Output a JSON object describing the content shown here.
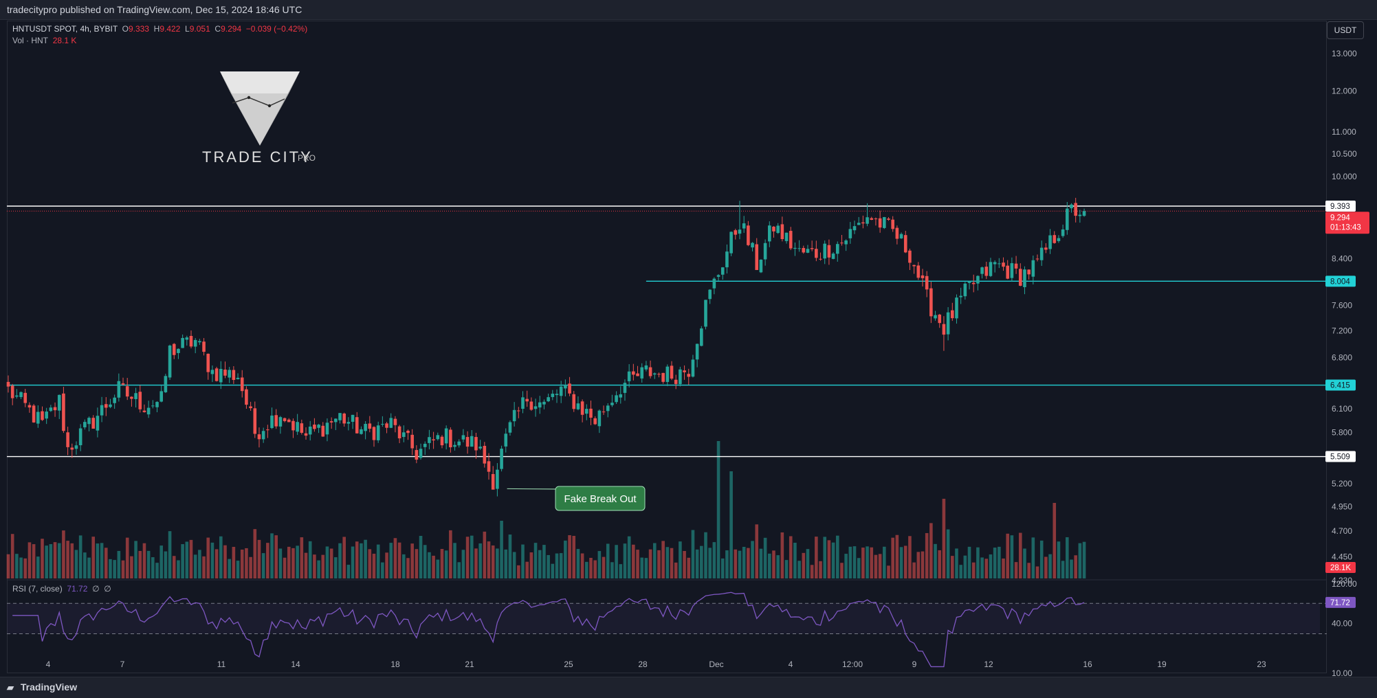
{
  "header": {
    "published": "tradecitypro published on TradingView.com, Dec 15, 2024 18:46 UTC"
  },
  "legend": {
    "symbol": "HNTUSDT SPOT, 4h, BYBIT",
    "o_label": "O",
    "o": "9.333",
    "h_label": "H",
    "h": "9.422",
    "l_label": "L",
    "l": "9.051",
    "c_label": "C",
    "c": "9.294",
    "change": "−0.039 (−0.42%)",
    "vol_label": "Vol · HNT",
    "vol": "28.1 K"
  },
  "rsi_legend": {
    "label": "RSI (7, close)",
    "value": "71.72",
    "extra1": "∅",
    "extra2": "∅"
  },
  "currency_button": "USDT",
  "watermark": {
    "text": "TRADE CITY",
    "suffix": "PRO"
  },
  "annotation": {
    "text": "Fake Break Out"
  },
  "footer": {
    "brand": "TradingView"
  },
  "colors": {
    "up": "#26a69a",
    "down": "#ef5350",
    "support": "#22d1d6",
    "rsi": "#7e57c2",
    "background": "#131722",
    "annotation": "#2e7d45"
  },
  "chart_data": {
    "type": "candlestick",
    "symbol": "HNTUSDT",
    "timeframe": "4h",
    "exchange": "BYBIT",
    "y_scale": "log",
    "ylim": [
      4.23,
      13.0
    ],
    "y_ticks": [
      13.0,
      12.0,
      11.0,
      10.5,
      10.0,
      8.4,
      7.6,
      7.2,
      6.8,
      6.1,
      5.8,
      5.2,
      4.95,
      4.7,
      4.45,
      4.23
    ],
    "y_tick_labels": [
      "13.000",
      "12.000",
      "11.000",
      "10.500",
      "10.000",
      "8.400",
      "7.600",
      "7.200",
      "6.800",
      "6.100",
      "5.800",
      "5.200",
      "4.950",
      "4.700",
      "4.450",
      "4.230"
    ],
    "x_tick_labels": [
      "4",
      "7",
      "11",
      "14",
      "18",
      "21",
      "25",
      "28",
      "Dec",
      "4",
      "12:00",
      "9",
      "12",
      "16",
      "19",
      "23"
    ],
    "anchors": [
      {
        "t": 0,
        "p": 6.35
      },
      {
        "t": 8,
        "p": 5.9
      },
      {
        "t": 12,
        "p": 6.2
      },
      {
        "t": 14,
        "p": 5.6
      },
      {
        "t": 20,
        "p": 5.95
      },
      {
        "t": 26,
        "p": 6.35
      },
      {
        "t": 32,
        "p": 6.15
      },
      {
        "t": 36,
        "p": 6.2
      },
      {
        "t": 38,
        "p": 6.9
      },
      {
        "t": 44,
        "p": 7.05
      },
      {
        "t": 48,
        "p": 6.6
      },
      {
        "t": 54,
        "p": 6.55
      },
      {
        "t": 58,
        "p": 5.8
      },
      {
        "t": 64,
        "p": 6.05
      },
      {
        "t": 70,
        "p": 5.75
      },
      {
        "t": 78,
        "p": 6.0
      },
      {
        "t": 84,
        "p": 5.8
      },
      {
        "t": 90,
        "p": 5.9
      },
      {
        "t": 96,
        "p": 5.55
      },
      {
        "t": 102,
        "p": 5.75
      },
      {
        "t": 110,
        "p": 5.65
      },
      {
        "t": 114,
        "p": 5.25
      },
      {
        "t": 118,
        "p": 5.85
      },
      {
        "t": 122,
        "p": 6.25
      },
      {
        "t": 126,
        "p": 6.15
      },
      {
        "t": 130,
        "p": 6.35
      },
      {
        "t": 138,
        "p": 5.95
      },
      {
        "t": 144,
        "p": 6.4
      },
      {
        "t": 150,
        "p": 6.6
      },
      {
        "t": 156,
        "p": 6.55
      },
      {
        "t": 160,
        "p": 6.65
      },
      {
        "t": 164,
        "p": 7.6
      },
      {
        "t": 168,
        "p": 8.35
      },
      {
        "t": 172,
        "p": 9.1
      },
      {
        "t": 176,
        "p": 8.3
      },
      {
        "t": 180,
        "p": 9.0
      },
      {
        "t": 186,
        "p": 8.5
      },
      {
        "t": 190,
        "p": 8.5
      },
      {
        "t": 196,
        "p": 8.7
      },
      {
        "t": 202,
        "p": 9.2
      },
      {
        "t": 208,
        "p": 8.9
      },
      {
        "t": 212,
        "p": 8.5
      },
      {
        "t": 216,
        "p": 7.7
      },
      {
        "t": 220,
        "p": 7.25
      },
      {
        "t": 226,
        "p": 7.9
      },
      {
        "t": 232,
        "p": 8.3
      },
      {
        "t": 238,
        "p": 8.1
      },
      {
        "t": 242,
        "p": 8.3
      },
      {
        "t": 246,
        "p": 8.8
      },
      {
        "t": 250,
        "p": 9.3
      },
      {
        "t": 253,
        "p": 9.294
      }
    ],
    "volume": {
      "last": "28.1K",
      "spikes": [
        {
          "t": 167,
          "rel": 1.0
        },
        {
          "t": 170,
          "rel": 0.78
        },
        {
          "t": 220,
          "rel": 0.58
        },
        {
          "t": 246,
          "rel": 0.55
        },
        {
          "t": 116,
          "rel": 0.42
        }
      ]
    },
    "rsi": {
      "period": 7,
      "value": 71.72,
      "ylim": [
        10,
        120
      ],
      "ticks": [
        120,
        40,
        10
      ],
      "tick_labels": [
        "120.00",
        "40.00",
        "10.00"
      ],
      "bands": [
        30,
        70
      ]
    },
    "levels": [
      {
        "price": 9.393,
        "label": "9.393",
        "color": "#ffffff",
        "style": "solid"
      },
      {
        "price": 9.294,
        "label": "9.294",
        "sublabel": "01:13:43",
        "color": "#f23645",
        "style": "dotted"
      },
      {
        "price": 8.004,
        "label": "8.004",
        "color": "#22d1d6",
        "style": "solid",
        "from_t": 150
      },
      {
        "price": 6.415,
        "label": "6.415",
        "color": "#22d1d6",
        "style": "solid"
      },
      {
        "price": 5.509,
        "label": "5.509",
        "color": "#ffffff",
        "style": "solid"
      }
    ],
    "annotations": [
      {
        "text": "Fake Break Out",
        "t": 116,
        "price": 5.25
      }
    ]
  }
}
